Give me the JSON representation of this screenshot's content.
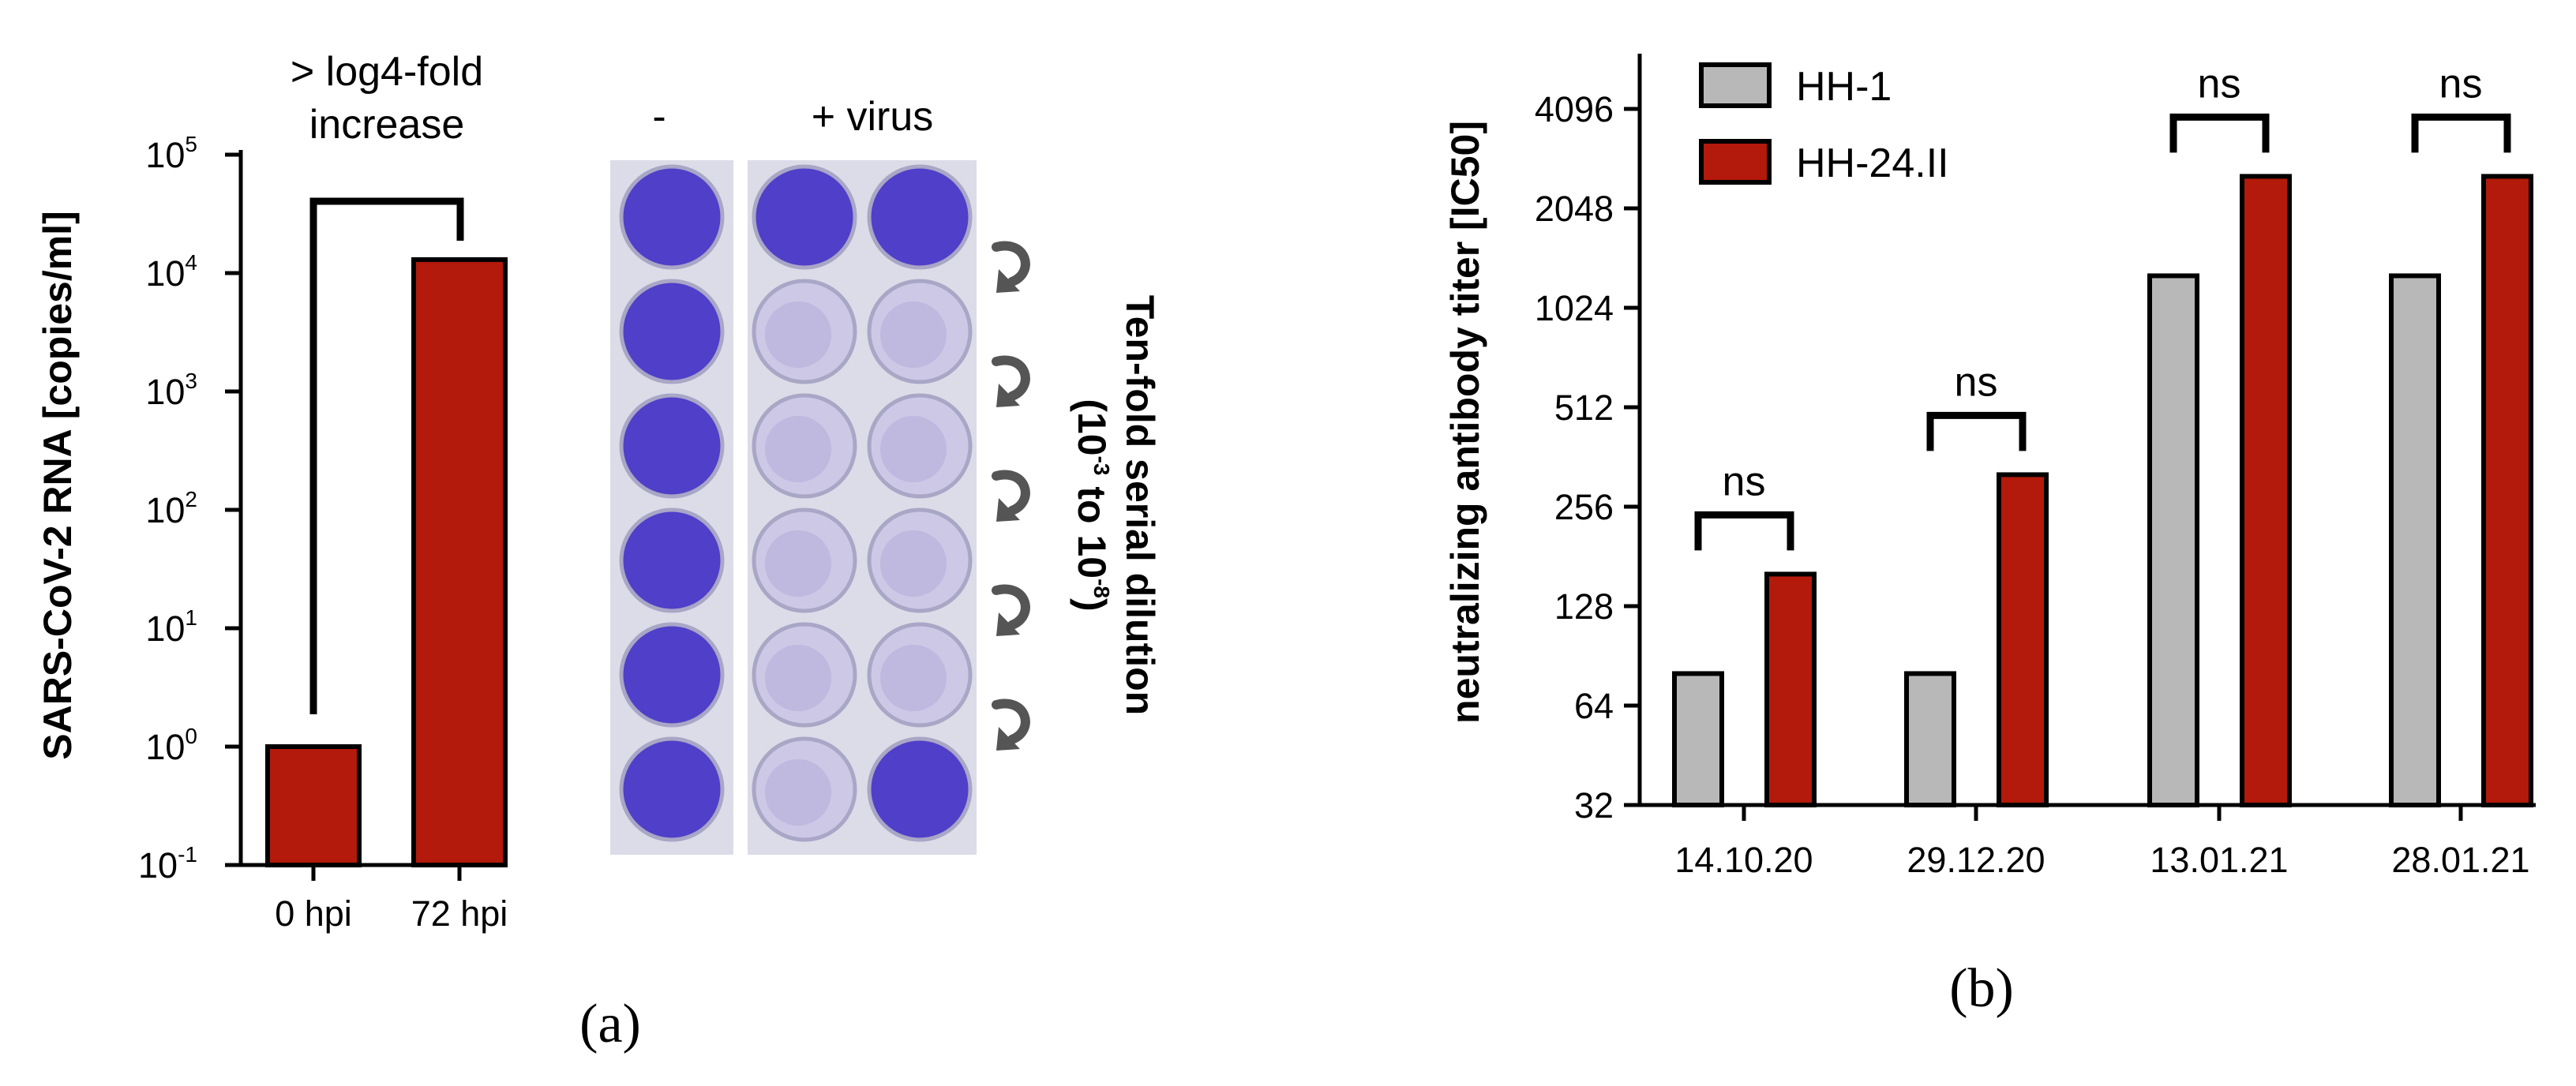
{
  "chart_data": [
    {
      "type": "bar",
      "panel_label": "(a)",
      "categories": [
        "0 hpi",
        "72 hpi"
      ],
      "values": [
        1,
        13000
      ],
      "ylabel": "SARS-CoV-2 RNA [copies/ml]",
      "yscale": "log10",
      "ylim": [
        0.1,
        100000
      ],
      "yticks": [
        {
          "base": "10",
          "exp": "-1"
        },
        {
          "base": "10",
          "exp": "0"
        },
        {
          "base": "10",
          "exp": "1"
        },
        {
          "base": "10",
          "exp": "2"
        },
        {
          "base": "10",
          "exp": "3"
        },
        {
          "base": "10",
          "exp": "4"
        },
        {
          "base": "10",
          "exp": "5"
        }
      ],
      "annotation_line1": "> log4-fold",
      "annotation_line2": "increase",
      "bar_color": "#b31a0b",
      "plate": {
        "label_minus": "-",
        "label_virus": "+ virus",
        "dilution_line1": "Ten-fold serial dilution",
        "dilution_open": "(10",
        "dilution_exp1": "-3",
        "dilution_mid": " to 10",
        "dilution_exp2": "-8",
        "dilution_close": ")",
        "rows": 6,
        "well_color": "#4f3fc9",
        "lysed_wells": [
          [
            1,
            1
          ],
          [
            1,
            2
          ],
          [
            2,
            1
          ],
          [
            2,
            2
          ],
          [
            3,
            1
          ],
          [
            3,
            2
          ],
          [
            4,
            1
          ],
          [
            4,
            2
          ],
          [
            5,
            1
          ]
        ]
      }
    },
    {
      "type": "bar",
      "panel_label": "(b)",
      "categories": [
        "14.10.20",
        "29.12.20",
        "13.01.21",
        "28.01.21"
      ],
      "series": [
        {
          "name": "HH-1",
          "values": [
            80,
            80,
            1280,
            1280
          ],
          "color": "#b8b8b8"
        },
        {
          "name": "HH-24.II",
          "values": [
            160,
            320,
            2560,
            2560
          ],
          "color": "#b31a0b"
        }
      ],
      "ylabel": "neutralizing antibody titer [IC50]",
      "yscale": "log2",
      "ylim": [
        32,
        6000
      ],
      "yticks": [
        "32",
        "64",
        "128",
        "256",
        "512",
        "1024",
        "2048",
        "4096"
      ],
      "significance": [
        "ns",
        "ns",
        "ns",
        "ns"
      ],
      "legend_position": "top-left"
    }
  ]
}
